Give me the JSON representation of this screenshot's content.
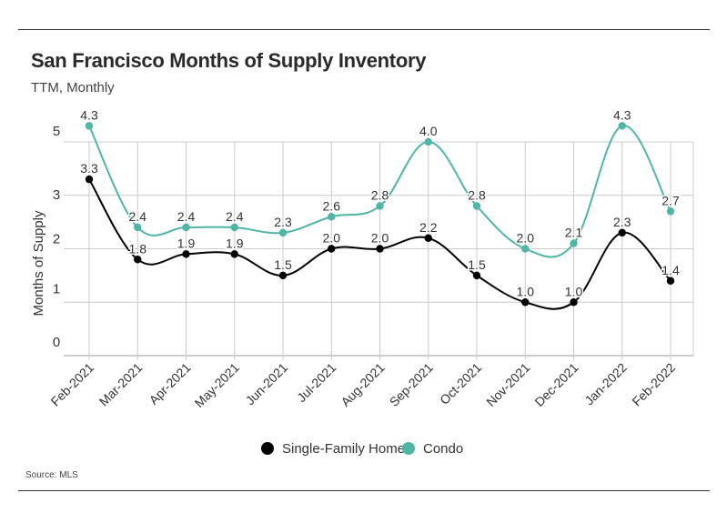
{
  "header": {
    "title": "San Francisco Months of Supply Inventory",
    "subtitle": "TTM, Monthly"
  },
  "footer": {
    "source": "Source:  MLS"
  },
  "colors": {
    "single_family": "#000000",
    "condo": "#4fb5a5",
    "grid": "#cccccc",
    "axis": "#999999"
  },
  "chart_data": {
    "type": "line",
    "title": "San Francisco Months of Supply Inventory",
    "subtitle": "TTM, Monthly",
    "ylabel": "Months of Supply",
    "xlabel": "",
    "categories": [
      "Feb-2021",
      "Mar-2021",
      "Apr-2021",
      "May-2021",
      "Jun-2021",
      "Jul-2021",
      "Aug-2021",
      "Sep-2021",
      "Oct-2021",
      "Nov-2021",
      "Dec-2021",
      "Jan-2022",
      "Feb-2022"
    ],
    "y_ticks": [
      "0",
      "1",
      "2",
      "3",
      "5"
    ],
    "grid": true,
    "legend_position": "bottom-center",
    "series": [
      {
        "name": "Single-Family Home",
        "values": [
          3.3,
          1.8,
          1.9,
          1.9,
          1.5,
          2.0,
          2.0,
          2.2,
          1.5,
          1.0,
          1.0,
          2.3,
          1.4
        ],
        "labels": [
          "3.3",
          "1.8",
          "1.9",
          "1.9",
          "1.5",
          "2.0",
          "2.0",
          "2.2",
          "1.5",
          "1.0",
          "1.0",
          "2.3",
          "1.4"
        ]
      },
      {
        "name": "Condo",
        "values": [
          4.3,
          2.4,
          2.4,
          2.4,
          2.3,
          2.6,
          2.8,
          4.0,
          2.8,
          2.0,
          2.1,
          4.3,
          2.7
        ],
        "labels": [
          "4.3",
          "2.4",
          "2.4",
          "2.4",
          "2.3",
          "2.6",
          "2.8",
          "4.0",
          "2.8",
          "2.0",
          "2.1",
          "4.3",
          "2.7"
        ]
      }
    ]
  }
}
